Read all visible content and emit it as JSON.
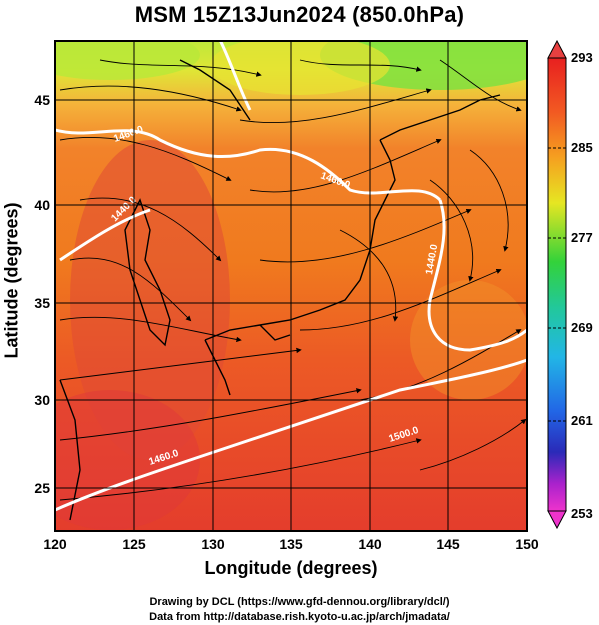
{
  "title": "MSM 15Z13Jun2024 (850.0hPa)",
  "xlabel": "Longitude (degrees)",
  "ylabel": "Latitude  (degrees)",
  "x_ticks": [
    "120",
    "125",
    "130",
    "135",
    "140",
    "145",
    "150"
  ],
  "y_ticks": [
    "25",
    "30",
    "35",
    "40",
    "45"
  ],
  "colorbar_ticks": [
    "293",
    "285",
    "277",
    "269",
    "261",
    "253"
  ],
  "contour_labels": [
    "1460.0",
    "1440.0",
    "1460.0",
    "1440.0",
    "1460.0",
    "1500.0"
  ],
  "credit_line1": "Drawing by DCL (https://www.gfd-dennou.org/library/dcl/)",
  "credit_line2": "Data from http://database.rish.kyoto-u.ac.jp/arch/jmadata/",
  "colors": {
    "warm": "#e8402a",
    "hot": "#d83838",
    "orange": "#f07a1e",
    "yellow": "#e0e020",
    "green": "#22cc33",
    "cyan": "#22b8d8",
    "blue": "#2233cc",
    "magenta": "#dd22cc"
  }
}
